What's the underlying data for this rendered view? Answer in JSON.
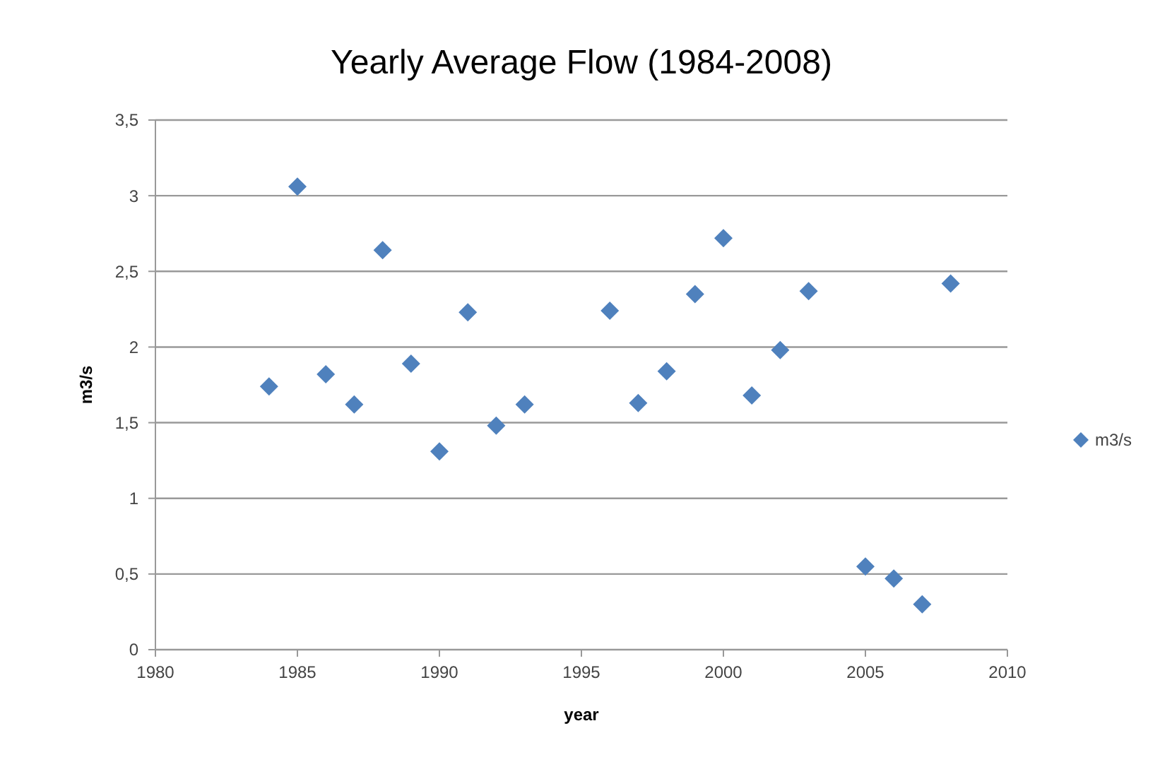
{
  "chart_data": {
    "type": "scatter",
    "title": "Yearly Average Flow (1984-2008)",
    "xlabel": "year",
    "ylabel": "m3/s",
    "x": [
      1984,
      1985,
      1986,
      1987,
      1988,
      1989,
      1990,
      1991,
      1992,
      1993,
      1996,
      1997,
      1998,
      1999,
      2000,
      2001,
      2002,
      2003,
      2005,
      2006,
      2007,
      2008
    ],
    "series": [
      {
        "name": "m3/s",
        "color": "#4f81bd",
        "values": [
          1.74,
          3.06,
          1.82,
          1.62,
          2.64,
          1.89,
          1.31,
          2.23,
          1.48,
          1.62,
          2.24,
          1.63,
          1.84,
          2.35,
          2.72,
          1.68,
          1.98,
          2.37,
          0.55,
          0.47,
          0.3,
          2.42
        ]
      }
    ],
    "xlim": [
      1980,
      2010
    ],
    "xticks": [
      1980,
      1985,
      1990,
      1995,
      2000,
      2005,
      2010
    ],
    "ylim": [
      0,
      3.5
    ],
    "yticks": [
      0,
      {
        "value": 0.5,
        "label": "0,5"
      },
      1,
      {
        "value": 1.5,
        "label": "1,5"
      },
      2,
      {
        "value": 2.5,
        "label": "2,5"
      },
      3,
      {
        "value": 3.5,
        "label": "3,5"
      }
    ],
    "grid": "y",
    "legend": "right",
    "marker": "diamond"
  }
}
